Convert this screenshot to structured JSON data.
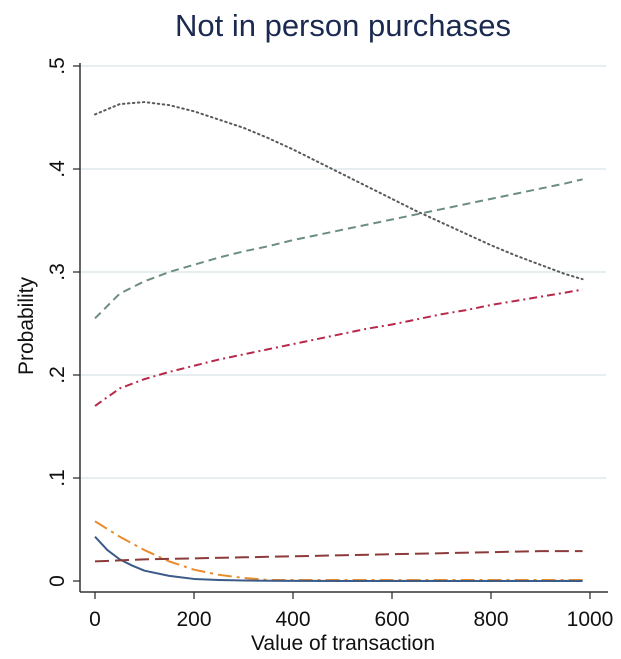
{
  "chart_data": {
    "type": "line",
    "title": "Not in person purchases",
    "xlabel": "Value of transaction",
    "ylabel": "Probability",
    "xlim": [
      0,
      1000
    ],
    "ylim": [
      0,
      0.5
    ],
    "x_ticks": [
      0,
      200,
      400,
      600,
      800,
      1000
    ],
    "x_tick_labels": [
      "0",
      "200",
      "400",
      "600",
      "800",
      "1000"
    ],
    "y_ticks": [
      0,
      0.1,
      0.2,
      0.3,
      0.4,
      0.5
    ],
    "y_tick_labels": [
      "0",
      ".1",
      ".2",
      ".3",
      ".4",
      ".5"
    ],
    "grid": "horizontal",
    "series": [
      {
        "color": "#5a5a5a",
        "dash": "dotted",
        "x": [
          0,
          50,
          100,
          150,
          200,
          250,
          300,
          350,
          400,
          450,
          500,
          550,
          600,
          650,
          700,
          750,
          800,
          850,
          900,
          950,
          985
        ],
        "values": [
          0.453,
          0.463,
          0.465,
          0.462,
          0.456,
          0.448,
          0.44,
          0.43,
          0.419,
          0.407,
          0.395,
          0.383,
          0.371,
          0.359,
          0.348,
          0.337,
          0.326,
          0.316,
          0.307,
          0.298,
          0.293
        ]
      },
      {
        "color": "#6b8e7f",
        "dash": "dashed",
        "x": [
          0,
          50,
          100,
          150,
          200,
          250,
          300,
          350,
          400,
          450,
          500,
          550,
          600,
          650,
          700,
          750,
          800,
          850,
          900,
          950,
          985
        ],
        "values": [
          0.255,
          0.279,
          0.291,
          0.3,
          0.307,
          0.314,
          0.32,
          0.325,
          0.331,
          0.336,
          0.341,
          0.346,
          0.351,
          0.356,
          0.361,
          0.366,
          0.371,
          0.376,
          0.381,
          0.386,
          0.39
        ]
      },
      {
        "color": "#b8284a",
        "dash": "dashdot",
        "x": [
          0,
          50,
          100,
          150,
          200,
          250,
          300,
          350,
          400,
          450,
          500,
          550,
          600,
          650,
          700,
          750,
          800,
          850,
          900,
          950,
          985
        ],
        "values": [
          0.17,
          0.187,
          0.196,
          0.203,
          0.209,
          0.215,
          0.22,
          0.225,
          0.23,
          0.235,
          0.24,
          0.245,
          0.249,
          0.254,
          0.259,
          0.263,
          0.268,
          0.272,
          0.276,
          0.28,
          0.283
        ]
      },
      {
        "color": "#e98a2c",
        "dash": "longdashdot",
        "x": [
          0,
          50,
          100,
          150,
          200,
          250,
          300,
          350,
          400,
          450,
          500,
          600,
          700,
          800,
          900,
          985
        ],
        "values": [
          0.058,
          0.043,
          0.03,
          0.019,
          0.011,
          0.006,
          0.003,
          0.001,
          0.001,
          0.001,
          0.001,
          0.001,
          0.001,
          0.001,
          0.001,
          0.001
        ]
      },
      {
        "color": "#3a5a88",
        "dash": "solid",
        "x": [
          0,
          25,
          50,
          75,
          100,
          150,
          200,
          250,
          300,
          350,
          400,
          500,
          600,
          700,
          800,
          900,
          985
        ],
        "values": [
          0.043,
          0.03,
          0.021,
          0.015,
          0.01,
          0.005,
          0.002,
          0.001,
          0.0005,
          0.0002,
          0.0001,
          0,
          0,
          0,
          0,
          0,
          0
        ]
      },
      {
        "color": "#8c3a3a",
        "dash": "longdash",
        "x": [
          0,
          100,
          200,
          300,
          400,
          500,
          600,
          700,
          800,
          900,
          985
        ],
        "values": [
          0.019,
          0.021,
          0.022,
          0.023,
          0.024,
          0.025,
          0.026,
          0.027,
          0.028,
          0.029,
          0.029
        ]
      }
    ]
  }
}
